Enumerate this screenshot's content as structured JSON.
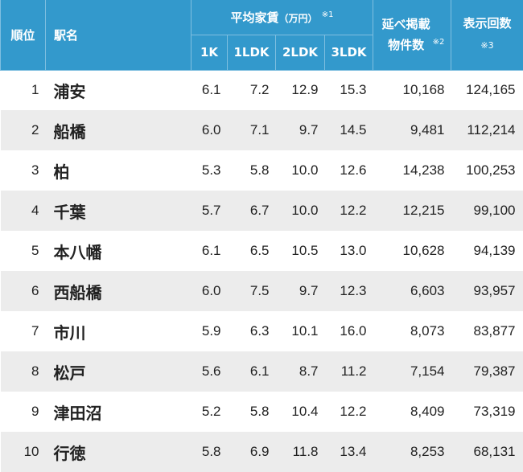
{
  "header": {
    "rank": "順位",
    "station": "駅名",
    "avg_rent": "平均家賃",
    "unit": "（万円）",
    "note1": "※1",
    "listings": "延べ掲載物件数",
    "note2": "※2",
    "views": "表示回数",
    "note3": "※3",
    "types": [
      "1K",
      "1LDK",
      "2LDK",
      "3LDK"
    ]
  },
  "colors": {
    "header_bg": "#3399cc",
    "alt_row": "#ececec"
  },
  "rows": [
    {
      "rank": "1",
      "name": "浦安",
      "r1k": "6.1",
      "r1ldk": "7.2",
      "r2ldk": "12.9",
      "r3ldk": "15.3",
      "listings": "10,168",
      "views": "124,165"
    },
    {
      "rank": "2",
      "name": "船橋",
      "r1k": "6.0",
      "r1ldk": "7.1",
      "r2ldk": "9.7",
      "r3ldk": "14.5",
      "listings": "9,481",
      "views": "112,214"
    },
    {
      "rank": "3",
      "name": "柏",
      "r1k": "5.3",
      "r1ldk": "5.8",
      "r2ldk": "10.0",
      "r3ldk": "12.6",
      "listings": "14,238",
      "views": "100,253"
    },
    {
      "rank": "4",
      "name": "千葉",
      "r1k": "5.7",
      "r1ldk": "6.7",
      "r2ldk": "10.0",
      "r3ldk": "12.2",
      "listings": "12,215",
      "views": "99,100"
    },
    {
      "rank": "5",
      "name": "本八幡",
      "r1k": "6.1",
      "r1ldk": "6.5",
      "r2ldk": "10.5",
      "r3ldk": "13.0",
      "listings": "10,628",
      "views": "94,139"
    },
    {
      "rank": "6",
      "name": "西船橋",
      "r1k": "6.0",
      "r1ldk": "7.5",
      "r2ldk": "9.7",
      "r3ldk": "12.3",
      "listings": "6,603",
      "views": "93,957"
    },
    {
      "rank": "7",
      "name": "市川",
      "r1k": "5.9",
      "r1ldk": "6.3",
      "r2ldk": "10.1",
      "r3ldk": "16.0",
      "listings": "8,073",
      "views": "83,877"
    },
    {
      "rank": "8",
      "name": "松戸",
      "r1k": "5.6",
      "r1ldk": "6.1",
      "r2ldk": "8.7",
      "r3ldk": "11.2",
      "listings": "7,154",
      "views": "79,387"
    },
    {
      "rank": "9",
      "name": "津田沼",
      "r1k": "5.2",
      "r1ldk": "5.8",
      "r2ldk": "10.4",
      "r3ldk": "12.2",
      "listings": "8,409",
      "views": "73,319"
    },
    {
      "rank": "10",
      "name": "行徳",
      "r1k": "5.8",
      "r1ldk": "6.9",
      "r2ldk": "11.8",
      "r3ldk": "13.4",
      "listings": "8,253",
      "views": "68,131"
    }
  ]
}
